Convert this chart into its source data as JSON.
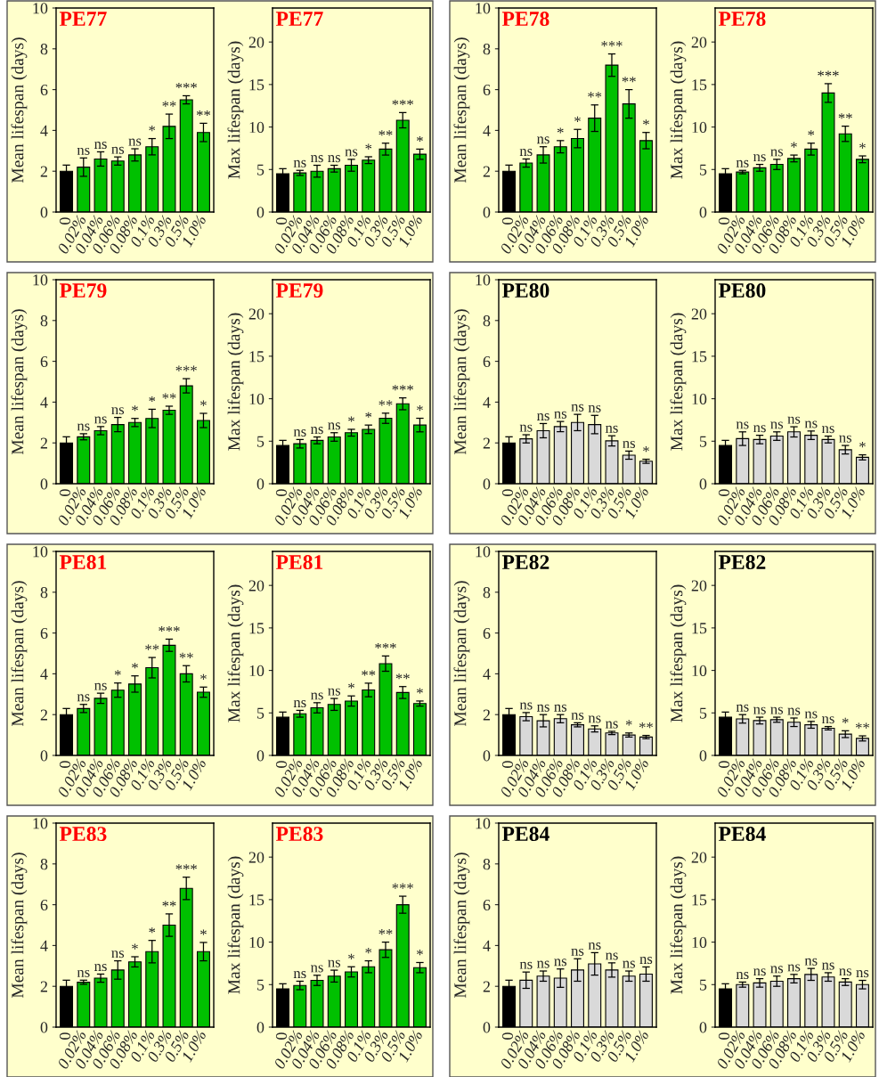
{
  "chart_data": [
    {
      "type": "bar",
      "title": "PE77",
      "ylabel": "Mean lifespan (days)",
      "categories": [
        "0",
        "0.02%",
        "0.04%",
        "0.06%",
        "0.08%",
        "0.1%",
        "0.3%",
        "0.5%",
        "1.0%"
      ],
      "values": [
        2.0,
        2.2,
        2.6,
        2.5,
        2.8,
        3.2,
        4.2,
        5.5,
        3.9
      ],
      "errors": [
        0.3,
        0.45,
        0.35,
        0.2,
        0.3,
        0.4,
        0.6,
        0.2,
        0.45
      ],
      "colors": [
        "#000000",
        "#00c000",
        "#00c000",
        "#00c000",
        "#00c000",
        "#00c000",
        "#00c000",
        "#00c000",
        "#00c000"
      ],
      "value_labels": [
        null,
        "ns",
        "ns",
        "ns",
        "ns",
        "*",
        "**",
        "***",
        "**"
      ],
      "ylim": [
        0,
        10
      ],
      "yticks": [
        0,
        2,
        4,
        6,
        8,
        10
      ]
    },
    {
      "type": "bar",
      "title": "PE77",
      "ylabel": "Max lifespan (days)",
      "categories": [
        "0",
        "0.02%",
        "0.04%",
        "0.06%",
        "0.08%",
        "0.1%",
        "0.3%",
        "0.5%",
        "1.0%"
      ],
      "values": [
        4.5,
        4.6,
        4.8,
        5.1,
        5.5,
        6.1,
        7.4,
        10.8,
        6.8
      ],
      "errors": [
        0.6,
        0.3,
        0.7,
        0.4,
        0.7,
        0.4,
        0.7,
        0.9,
        0.6
      ],
      "colors": [
        "#000000",
        "#00c000",
        "#00c000",
        "#00c000",
        "#00c000",
        "#00c000",
        "#00c000",
        "#00c000",
        "#00c000"
      ],
      "value_labels": [
        null,
        "ns",
        "ns",
        "ns",
        "ns",
        "*",
        "**",
        "***",
        "*"
      ],
      "ylim": [
        0,
        24
      ],
      "yticks": [
        0,
        5,
        10,
        15,
        20
      ]
    },
    {
      "type": "bar",
      "title": "PE78",
      "ylabel": "Mean lifespan (days)",
      "categories": [
        "0",
        "0.02%",
        "0.04%",
        "0.06%",
        "0.08%",
        "0.1%",
        "0.3%",
        "0.5%",
        "1.0%"
      ],
      "values": [
        2.0,
        2.4,
        2.8,
        3.2,
        3.6,
        4.6,
        7.2,
        5.3,
        3.5
      ],
      "errors": [
        0.3,
        0.2,
        0.4,
        0.3,
        0.45,
        0.65,
        0.55,
        0.7,
        0.4
      ],
      "colors": [
        "#000000",
        "#00c000",
        "#00c000",
        "#00c000",
        "#00c000",
        "#00c000",
        "#00c000",
        "#00c000",
        "#00c000"
      ],
      "value_labels": [
        null,
        "ns",
        "ns",
        "*",
        "*",
        "**",
        "***",
        "**",
        "*"
      ],
      "ylim": [
        0,
        10
      ],
      "yticks": [
        0,
        2,
        4,
        6,
        8,
        10
      ]
    },
    {
      "type": "bar",
      "title": "PE78",
      "ylabel": "Max lifespan (days)",
      "categories": [
        "0",
        "0.02%",
        "0.04%",
        "0.06%",
        "0.08%",
        "0.1%",
        "0.3%",
        "0.5%",
        "1.0%"
      ],
      "values": [
        4.5,
        4.7,
        5.2,
        5.6,
        6.3,
        7.4,
        14.0,
        9.2,
        6.2
      ],
      "errors": [
        0.6,
        0.2,
        0.4,
        0.6,
        0.4,
        0.7,
        1.1,
        0.9,
        0.4
      ],
      "colors": [
        "#000000",
        "#00c000",
        "#00c000",
        "#00c000",
        "#00c000",
        "#00c000",
        "#00c000",
        "#00c000",
        "#00c000"
      ],
      "value_labels": [
        null,
        "ns",
        "ns",
        "ns",
        "*",
        "*",
        "***",
        "**",
        "*"
      ],
      "ylim": [
        0,
        24
      ],
      "yticks": [
        0,
        5,
        10,
        15,
        20
      ]
    },
    {
      "type": "bar",
      "title": "PE79",
      "ylabel": "Mean lifespan (days)",
      "categories": [
        "0",
        "0.02%",
        "0.04%",
        "0.06%",
        "0.08%",
        "0.1%",
        "0.3%",
        "0.5%",
        "1.0%"
      ],
      "values": [
        2.0,
        2.3,
        2.6,
        2.9,
        3.0,
        3.2,
        3.6,
        4.8,
        3.1
      ],
      "errors": [
        0.3,
        0.15,
        0.2,
        0.35,
        0.2,
        0.45,
        0.2,
        0.35,
        0.35
      ],
      "colors": [
        "#000000",
        "#00c000",
        "#00c000",
        "#00c000",
        "#00c000",
        "#00c000",
        "#00c000",
        "#00c000",
        "#00c000"
      ],
      "value_labels": [
        null,
        "ns",
        "ns",
        "ns",
        "*",
        "*",
        "**",
        "***",
        "*"
      ],
      "ylim": [
        0,
        10
      ],
      "yticks": [
        0,
        2,
        4,
        6,
        8,
        10
      ]
    },
    {
      "type": "bar",
      "title": "PE79",
      "ylabel": "Max lifespan (days)",
      "categories": [
        "0",
        "0.02%",
        "0.04%",
        "0.06%",
        "0.08%",
        "0.1%",
        "0.3%",
        "0.5%",
        "1.0%"
      ],
      "values": [
        4.5,
        4.7,
        5.1,
        5.5,
        6.0,
        6.4,
        7.7,
        9.4,
        6.9
      ],
      "errors": [
        0.6,
        0.5,
        0.4,
        0.5,
        0.4,
        0.5,
        0.6,
        0.7,
        0.8
      ],
      "colors": [
        "#000000",
        "#00c000",
        "#00c000",
        "#00c000",
        "#00c000",
        "#00c000",
        "#00c000",
        "#00c000",
        "#00c000"
      ],
      "value_labels": [
        null,
        "ns",
        "ns",
        "ns",
        "*",
        "*",
        "**",
        "***",
        "*"
      ],
      "ylim": [
        0,
        24
      ],
      "yticks": [
        0,
        5,
        10,
        15,
        20
      ]
    },
    {
      "type": "bar",
      "title": "PE80",
      "ylabel": "Mean lifespan (days)",
      "categories": [
        "0",
        "0.02%",
        "0.04%",
        "0.06%",
        "0.08%",
        "0.1%",
        "0.3%",
        "0.5%",
        "1.0%"
      ],
      "values": [
        2.0,
        2.2,
        2.6,
        2.8,
        3.0,
        2.9,
        2.1,
        1.4,
        1.1
      ],
      "errors": [
        0.3,
        0.2,
        0.35,
        0.25,
        0.4,
        0.45,
        0.25,
        0.2,
        0.1
      ],
      "colors": [
        "#000000",
        "#d9d9d9",
        "#d9d9d9",
        "#d9d9d9",
        "#d9d9d9",
        "#d9d9d9",
        "#d9d9d9",
        "#d9d9d9",
        "#d9d9d9"
      ],
      "value_labels": [
        null,
        "ns",
        "ns",
        "ns",
        "ns",
        "ns",
        "ns",
        "ns",
        "*"
      ],
      "ylim": [
        0,
        10
      ],
      "yticks": [
        0,
        2,
        4,
        6,
        8,
        10
      ]
    },
    {
      "type": "bar",
      "title": "PE80",
      "ylabel": "Max lifespan (days)",
      "categories": [
        "0",
        "0.02%",
        "0.04%",
        "0.06%",
        "0.08%",
        "0.1%",
        "0.3%",
        "0.5%",
        "1.0%"
      ],
      "values": [
        4.5,
        5.3,
        5.2,
        5.6,
        6.1,
        5.7,
        5.2,
        4.0,
        3.1
      ],
      "errors": [
        0.6,
        0.8,
        0.5,
        0.5,
        0.6,
        0.5,
        0.4,
        0.5,
        0.3
      ],
      "colors": [
        "#000000",
        "#d9d9d9",
        "#d9d9d9",
        "#d9d9d9",
        "#d9d9d9",
        "#d9d9d9",
        "#d9d9d9",
        "#d9d9d9",
        "#d9d9d9"
      ],
      "value_labels": [
        null,
        "ns",
        "ns",
        "ns",
        "ns",
        "ns",
        "ns",
        "ns",
        "*"
      ],
      "ylim": [
        0,
        24
      ],
      "yticks": [
        0,
        5,
        10,
        15,
        20
      ]
    },
    {
      "type": "bar",
      "title": "PE81",
      "ylabel": "Mean lifespan (days)",
      "categories": [
        "0",
        "0.02%",
        "0.04%",
        "0.06%",
        "0.08%",
        "0.1%",
        "0.3%",
        "0.5%",
        "1.0%"
      ],
      "values": [
        2.0,
        2.3,
        2.8,
        3.2,
        3.5,
        4.3,
        5.4,
        4.0,
        3.1
      ],
      "errors": [
        0.3,
        0.2,
        0.25,
        0.35,
        0.4,
        0.5,
        0.3,
        0.4,
        0.25
      ],
      "colors": [
        "#000000",
        "#00c000",
        "#00c000",
        "#00c000",
        "#00c000",
        "#00c000",
        "#00c000",
        "#00c000",
        "#00c000"
      ],
      "value_labels": [
        null,
        "ns",
        "ns",
        "*",
        "*",
        "**",
        "***",
        "**",
        "*"
      ],
      "ylim": [
        0,
        10
      ],
      "yticks": [
        0,
        2,
        4,
        6,
        8,
        10
      ]
    },
    {
      "type": "bar",
      "title": "PE81",
      "ylabel": "Max lifespan (days)",
      "categories": [
        "0",
        "0.02%",
        "0.04%",
        "0.06%",
        "0.08%",
        "0.1%",
        "0.3%",
        "0.5%",
        "1.0%"
      ],
      "values": [
        4.5,
        4.9,
        5.6,
        6.0,
        6.4,
        7.7,
        10.8,
        7.4,
        6.1
      ],
      "errors": [
        0.6,
        0.4,
        0.6,
        0.7,
        0.6,
        0.8,
        0.9,
        0.7,
        0.3
      ],
      "colors": [
        "#000000",
        "#00c000",
        "#00c000",
        "#00c000",
        "#00c000",
        "#00c000",
        "#00c000",
        "#00c000",
        "#00c000"
      ],
      "value_labels": [
        null,
        "ns",
        "ns",
        "ns",
        "*",
        "**",
        "***",
        "**",
        "*"
      ],
      "ylim": [
        0,
        24
      ],
      "yticks": [
        0,
        5,
        10,
        15,
        20
      ]
    },
    {
      "type": "bar",
      "title": "PE82",
      "ylabel": "Mean lifespan (days)",
      "categories": [
        "0",
        "0.02%",
        "0.04%",
        "0.06%",
        "0.08%",
        "0.1%",
        "0.3%",
        "0.5%",
        "1.0%"
      ],
      "values": [
        2.0,
        1.9,
        1.7,
        1.8,
        1.5,
        1.3,
        1.1,
        1.0,
        0.9
      ],
      "errors": [
        0.3,
        0.2,
        0.3,
        0.2,
        0.1,
        0.15,
        0.08,
        0.1,
        0.08
      ],
      "colors": [
        "#000000",
        "#d9d9d9",
        "#d9d9d9",
        "#d9d9d9",
        "#d9d9d9",
        "#d9d9d9",
        "#d9d9d9",
        "#d9d9d9",
        "#d9d9d9"
      ],
      "value_labels": [
        null,
        "ns",
        "ns",
        "ns",
        "ns",
        "ns",
        "ns",
        "*",
        "**"
      ],
      "ylim": [
        0,
        10
      ],
      "yticks": [
        0,
        2,
        4,
        6,
        8,
        10
      ]
    },
    {
      "type": "bar",
      "title": "PE82",
      "ylabel": "Max lifespan (days)",
      "categories": [
        "0",
        "0.02%",
        "0.04%",
        "0.06%",
        "0.08%",
        "0.1%",
        "0.3%",
        "0.5%",
        "1.0%"
      ],
      "values": [
        4.5,
        4.3,
        4.1,
        4.2,
        3.9,
        3.6,
        3.2,
        2.5,
        2.0
      ],
      "errors": [
        0.6,
        0.5,
        0.4,
        0.3,
        0.5,
        0.4,
        0.2,
        0.4,
        0.3
      ],
      "colors": [
        "#000000",
        "#d9d9d9",
        "#d9d9d9",
        "#d9d9d9",
        "#d9d9d9",
        "#d9d9d9",
        "#d9d9d9",
        "#d9d9d9",
        "#d9d9d9"
      ],
      "value_labels": [
        null,
        "ns",
        "ns",
        "ns",
        "ns",
        "ns",
        "ns",
        "*",
        "**"
      ],
      "ylim": [
        0,
        24
      ],
      "yticks": [
        0,
        5,
        10,
        15,
        20
      ]
    },
    {
      "type": "bar",
      "title": "PE83",
      "ylabel": "Mean lifespan (days)",
      "categories": [
        "0",
        "0.02%",
        "0.04%",
        "0.06%",
        "0.08%",
        "0.1%",
        "0.3%",
        "0.5%",
        "1.0%"
      ],
      "values": [
        2.0,
        2.2,
        2.4,
        2.8,
        3.2,
        3.7,
        5.0,
        6.8,
        3.7
      ],
      "errors": [
        0.3,
        0.1,
        0.2,
        0.45,
        0.25,
        0.55,
        0.55,
        0.55,
        0.45
      ],
      "colors": [
        "#000000",
        "#00c000",
        "#00c000",
        "#00c000",
        "#00c000",
        "#00c000",
        "#00c000",
        "#00c000",
        "#00c000"
      ],
      "value_labels": [
        null,
        "ns",
        "ns",
        "ns",
        "*",
        "*",
        "**",
        "***",
        "*"
      ],
      "ylim": [
        0,
        10
      ],
      "yticks": [
        0,
        2,
        4,
        6,
        8,
        10
      ]
    },
    {
      "type": "bar",
      "title": "PE83",
      "ylabel": "Max lifespan (days)",
      "categories": [
        "0",
        "0.02%",
        "0.04%",
        "0.06%",
        "0.08%",
        "0.1%",
        "0.3%",
        "0.5%",
        "1.0%"
      ],
      "values": [
        4.5,
        4.9,
        5.5,
        6.0,
        6.5,
        7.1,
        9.1,
        14.4,
        7.0
      ],
      "errors": [
        0.6,
        0.5,
        0.6,
        0.7,
        0.6,
        0.7,
        0.9,
        1.0,
        0.6
      ],
      "colors": [
        "#000000",
        "#00c000",
        "#00c000",
        "#00c000",
        "#00c000",
        "#00c000",
        "#00c000",
        "#00c000",
        "#00c000"
      ],
      "value_labels": [
        null,
        "ns",
        "ns",
        "ns",
        "*",
        "*",
        "**",
        "***",
        "*"
      ],
      "ylim": [
        0,
        24
      ],
      "yticks": [
        0,
        5,
        10,
        15,
        20
      ]
    },
    {
      "type": "bar",
      "title": "PE84",
      "ylabel": "Mean lifespan (days)",
      "categories": [
        "0",
        "0.02%",
        "0.04%",
        "0.06%",
        "0.08%",
        "0.1%",
        "0.3%",
        "0.5%",
        "1.0%"
      ],
      "values": [
        2.0,
        2.3,
        2.5,
        2.4,
        2.8,
        3.1,
        2.8,
        2.5,
        2.6
      ],
      "errors": [
        0.3,
        0.4,
        0.25,
        0.45,
        0.55,
        0.55,
        0.35,
        0.25,
        0.35
      ],
      "colors": [
        "#000000",
        "#d9d9d9",
        "#d9d9d9",
        "#d9d9d9",
        "#d9d9d9",
        "#d9d9d9",
        "#d9d9d9",
        "#d9d9d9",
        "#d9d9d9"
      ],
      "value_labels": [
        null,
        "ns",
        "ns",
        "ns",
        "ns",
        "ns",
        "ns",
        "ns",
        "ns"
      ],
      "ylim": [
        0,
        10
      ],
      "yticks": [
        0,
        2,
        4,
        6,
        8,
        10
      ]
    },
    {
      "type": "bar",
      "title": "PE84",
      "ylabel": "Max lifespan (days)",
      "categories": [
        "0",
        "0.02%",
        "0.04%",
        "0.06%",
        "0.08%",
        "0.1%",
        "0.3%",
        "0.5%",
        "1.0%"
      ],
      "values": [
        4.5,
        5.0,
        5.2,
        5.4,
        5.7,
        6.2,
        5.9,
        5.3,
        5.0
      ],
      "errors": [
        0.6,
        0.3,
        0.5,
        0.6,
        0.5,
        0.7,
        0.5,
        0.4,
        0.5
      ],
      "colors": [
        "#000000",
        "#d9d9d9",
        "#d9d9d9",
        "#d9d9d9",
        "#d9d9d9",
        "#d9d9d9",
        "#d9d9d9",
        "#d9d9d9",
        "#d9d9d9"
      ],
      "value_labels": [
        null,
        "ns",
        "ns",
        "ns",
        "ns",
        "ns",
        "ns",
        "ns",
        "ns"
      ],
      "ylim": [
        0,
        24
      ],
      "yticks": [
        0,
        5,
        10,
        15,
        20
      ]
    }
  ]
}
